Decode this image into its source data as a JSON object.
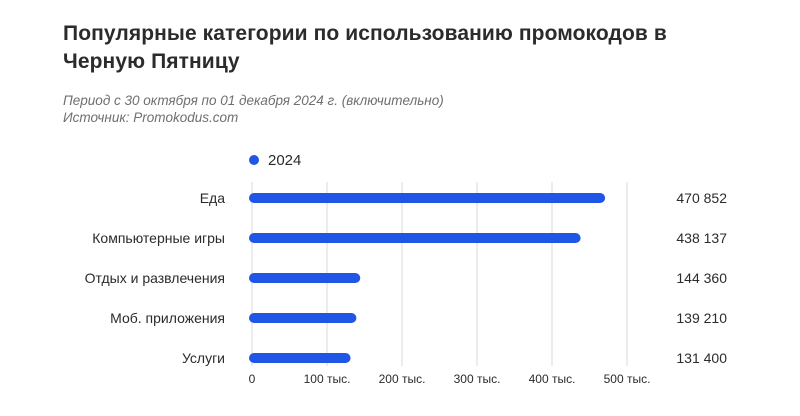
{
  "title": "Популярные категории по использованию промокодов в Черную Пятницу",
  "subtitle": "Период с 30 октября по 01 декабря 2024 г. (включительно)",
  "source": "Источник: Promokodus.com",
  "colors": {
    "bar": "#1f56e6",
    "grid": "#d9d9d9",
    "text": "#2b2b2b"
  },
  "chart_data": {
    "type": "bar",
    "orientation": "horizontal",
    "title": "Популярные категории по использованию промокодов в Черную Пятницу",
    "categories": [
      "Еда",
      "Компьютерные игры",
      "Отдых и развлечения",
      "Моб. приложения",
      "Услуги"
    ],
    "series": [
      {
        "name": "2024",
        "values": [
          470852,
          438137,
          144360,
          139210,
          131400
        ]
      }
    ],
    "value_labels": [
      "470 852",
      "438 137",
      "144 360",
      "139 210",
      "131 400"
    ],
    "xlim": [
      0,
      500000
    ],
    "xticks": [
      0,
      100000,
      200000,
      300000,
      400000,
      500000
    ],
    "xtick_labels": [
      "0",
      "100 тыс.",
      "200 тыс.",
      "300 тыс.",
      "400 тыс.",
      "500 тыс."
    ],
    "grid": "vertical",
    "legend_position": "top-left"
  }
}
